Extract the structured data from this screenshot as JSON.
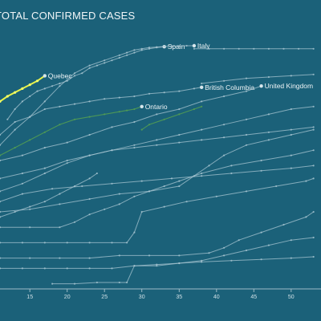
{
  "chart_data": {
    "type": "line",
    "title": "TOTAL CONFIRMED CASES",
    "xlabel": "",
    "ylabel": "",
    "x_ticks": [
      15,
      20,
      25,
      30,
      35,
      40,
      45,
      50
    ],
    "xlim": [
      11,
      54
    ],
    "ylim": [
      0,
      100
    ],
    "y_scale": "log",
    "grid": false,
    "series": [
      {
        "name": "Spain",
        "label_at": "end",
        "style": "base",
        "x": [
          12,
          13,
          14,
          15,
          16,
          17,
          18,
          19,
          20,
          21,
          22,
          23,
          24,
          25,
          26,
          27,
          28,
          29,
          30,
          31,
          32,
          33
        ],
        "y": [
          66,
          70,
          73,
          75,
          77,
          78,
          79,
          80,
          81,
          83,
          84,
          86,
          87,
          88,
          89,
          90,
          91,
          92,
          93,
          93.5,
          94,
          94.3
        ]
      },
      {
        "name": "Italy",
        "label_at": "end",
        "style": "base",
        "x": [
          11,
          13,
          15,
          17,
          19,
          21,
          23,
          25,
          27,
          28,
          29,
          30,
          31,
          32,
          33,
          34,
          35,
          36,
          37
        ],
        "y": [
          56,
          62,
          67,
          73,
          79,
          84,
          87,
          89,
          91,
          92,
          93,
          93.5,
          94,
          94.2,
          94.4,
          94.5,
          94.6,
          94.7,
          94.7
        ]
      },
      {
        "name": "",
        "label_at": "none",
        "style": "base",
        "x": [
          37,
          39,
          41,
          43,
          45,
          47,
          49,
          51,
          53
        ],
        "y": [
          93.5,
          93.5,
          93.5,
          93.5,
          93.5,
          93.5,
          93.5,
          93.5,
          93.5
        ]
      },
      {
        "name": "Quebec",
        "label_at": "end",
        "style": "yellow",
        "x": [
          11,
          12,
          13,
          14,
          15,
          16,
          17
        ],
        "y": [
          73,
          75,
          76.5,
          78,
          79.5,
          81,
          83
        ]
      },
      {
        "name": "British Columbia",
        "label_at": "end",
        "style": "base",
        "x": [
          11,
          13,
          15,
          17,
          19,
          21,
          23,
          25,
          27,
          29,
          31,
          33,
          35,
          37,
          38
        ],
        "y": [
          60,
          65,
          67,
          70,
          71,
          72,
          73,
          74,
          74.5,
          75,
          76,
          76.5,
          77,
          78,
          78.5
        ]
      },
      {
        "name": "United Kingdom",
        "label_at": "end",
        "style": "base",
        "x": [
          11,
          14,
          17,
          20,
          23,
          26,
          29,
          32,
          35,
          38,
          41,
          44,
          46
        ],
        "y": [
          50,
          52,
          55,
          57,
          60,
          63,
          65,
          68,
          70,
          73,
          75,
          77,
          79
        ]
      },
      {
        "name": "",
        "label_at": "none",
        "style": "base",
        "x": [
          38,
          41,
          44,
          47,
          50,
          53
        ],
        "y": [
          80,
          81,
          82,
          82.5,
          83,
          83.5
        ]
      },
      {
        "name": "Ontario",
        "label_at": "end",
        "style": "green",
        "x": [
          11,
          13,
          15,
          17,
          19,
          21,
          23,
          25,
          27,
          28,
          29,
          30
        ],
        "y": [
          52,
          55,
          58,
          61,
          64,
          66,
          67,
          68,
          69,
          69.5,
          70,
          71
        ]
      },
      {
        "name": "",
        "label_at": "none",
        "style": "green",
        "x": [
          30,
          31,
          33,
          35,
          37,
          38
        ],
        "y": [
          62,
          64,
          66,
          68,
          70,
          71
        ]
      },
      {
        "name": "",
        "label_at": "none",
        "style": "base",
        "x": [
          11,
          14,
          17,
          20,
          23,
          26,
          29,
          32,
          35,
          38,
          41,
          44,
          47,
          50,
          53
        ],
        "y": [
          38,
          41,
          45,
          49,
          52,
          54,
          56,
          58,
          60,
          62,
          64,
          66,
          68,
          70,
          71
        ]
      },
      {
        "name": "",
        "label_at": "none",
        "style": "base",
        "x": [
          11,
          14,
          17,
          20,
          23,
          26,
          29,
          32,
          35,
          38,
          41,
          44,
          47,
          50,
          53
        ],
        "y": [
          43,
          45,
          47,
          50,
          52,
          54,
          55,
          56,
          57,
          58,
          59,
          60,
          61,
          62,
          63
        ]
      },
      {
        "name": "",
        "label_at": "none",
        "style": "base",
        "x": [
          11,
          15,
          19,
          23,
          27,
          31,
          35,
          37,
          39,
          41,
          44,
          47,
          50,
          53
        ],
        "y": [
          30,
          31,
          33,
          35,
          37,
          38,
          40,
          44,
          48,
          52,
          56,
          58,
          60,
          62
        ]
      },
      {
        "name": "",
        "label_at": "none",
        "style": "base",
        "x": [
          11,
          14,
          18,
          22,
          26,
          30,
          34,
          38,
          42,
          46,
          50,
          53
        ],
        "y": [
          34,
          37,
          39,
          40,
          41,
          42,
          43,
          44,
          45,
          46,
          47,
          48
        ]
      },
      {
        "name": "",
        "label_at": "none",
        "style": "base",
        "x": [
          11,
          15,
          19,
          21,
          23,
          25,
          27,
          29,
          31,
          33,
          35,
          38,
          42,
          46,
          50,
          53
        ],
        "y": [
          24,
          24,
          24,
          26,
          29,
          31,
          33,
          36,
          38,
          40,
          42,
          45,
          48,
          50,
          52,
          54
        ]
      },
      {
        "name": "",
        "label_at": "none",
        "style": "base",
        "x": [
          11,
          14,
          17,
          20,
          23,
          26,
          28,
          29,
          30,
          33,
          36,
          40,
          44,
          48,
          52,
          53
        ],
        "y": [
          18,
          18,
          18,
          18,
          18,
          18,
          18,
          22,
          30,
          32,
          34,
          36,
          38,
          40,
          42,
          43
        ]
      },
      {
        "name": "",
        "label_at": "none",
        "style": "base",
        "x": [
          11,
          15,
          19,
          23,
          27,
          31,
          35,
          39,
          41,
          43,
          46,
          49,
          52,
          53
        ],
        "y": [
          12,
          12,
          12,
          12,
          13,
          13,
          13,
          14,
          16,
          19,
          22,
          25,
          28,
          30
        ]
      },
      {
        "name": "",
        "label_at": "none",
        "style": "base",
        "x": [
          11,
          14,
          17,
          20,
          23,
          26,
          29,
          32,
          35,
          38,
          41,
          44,
          47,
          50,
          53
        ],
        "y": [
          8,
          8,
          8,
          8,
          8,
          8,
          9,
          9,
          10,
          11,
          13,
          15,
          17,
          19,
          20
        ]
      },
      {
        "name": "",
        "label_at": "none",
        "style": "base",
        "x": [
          18,
          21,
          24,
          27,
          28,
          29,
          32,
          35,
          38,
          42,
          46,
          50,
          53
        ],
        "y": [
          2,
          2,
          2.5,
          2.5,
          2.5,
          9,
          9.5,
          10,
          10.5,
          11,
          11.5,
          12,
          12.5
        ]
      },
      {
        "name": "",
        "label_at": "none",
        "style": "base",
        "x": [
          11,
          13,
          15,
          17,
          19,
          21,
          23,
          24
        ],
        "y": [
          28,
          30,
          32,
          34,
          37,
          40,
          43,
          45
        ]
      }
    ]
  }
}
